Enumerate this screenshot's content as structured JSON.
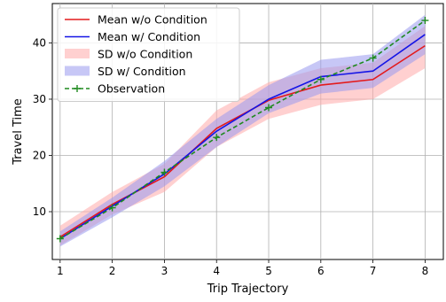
{
  "chart_data": {
    "type": "line",
    "title": "",
    "xlabel": "Trip Trajectory",
    "ylabel": "Travel Time",
    "x": [
      1,
      2,
      3,
      4,
      5,
      6,
      7,
      8
    ],
    "xlim": [
      0.85,
      8.35
    ],
    "ylim": [
      1.5,
      47
    ],
    "xticks": [
      "1",
      "2",
      "3",
      "4",
      "5",
      "6",
      "7",
      "8"
    ],
    "yticks": [
      10,
      20,
      30,
      40
    ],
    "grid": true,
    "legend_position": "upper-left",
    "series": [
      {
        "name": "Mean w/o Condition",
        "kind": "line",
        "color": "#e31a1c",
        "values": [
          5.5,
          11.3,
          16.2,
          24.8,
          29.8,
          32.5,
          33.5,
          39.5
        ]
      },
      {
        "name": "Mean w/ Condition",
        "kind": "line",
        "color": "#1515e6",
        "values": [
          5.2,
          11.0,
          16.7,
          24.3,
          30.0,
          34.0,
          35.0,
          41.5
        ]
      },
      {
        "name": "SD w/o Condition",
        "kind": "band",
        "color": "#ffaaaa",
        "lower": [
          4.0,
          9.5,
          13.5,
          21.5,
          26.5,
          29.0,
          30.0,
          35.5
        ],
        "upper": [
          7.5,
          13.5,
          18.5,
          28.0,
          33.0,
          35.5,
          36.5,
          43.0
        ]
      },
      {
        "name": "SD w/ Condition",
        "kind": "band",
        "color": "#9999ee",
        "lower": [
          3.8,
          9.0,
          14.5,
          21.5,
          27.5,
          31.0,
          32.0,
          38.0
        ],
        "upper": [
          6.5,
          12.5,
          19.0,
          26.5,
          32.5,
          37.0,
          38.0,
          45.0
        ]
      },
      {
        "name": "Observation",
        "kind": "dashed-markers",
        "color": "#1f8a1f",
        "values": [
          5.2,
          10.7,
          17.0,
          23.2,
          28.5,
          33.5,
          37.3,
          44.0
        ]
      }
    ]
  }
}
